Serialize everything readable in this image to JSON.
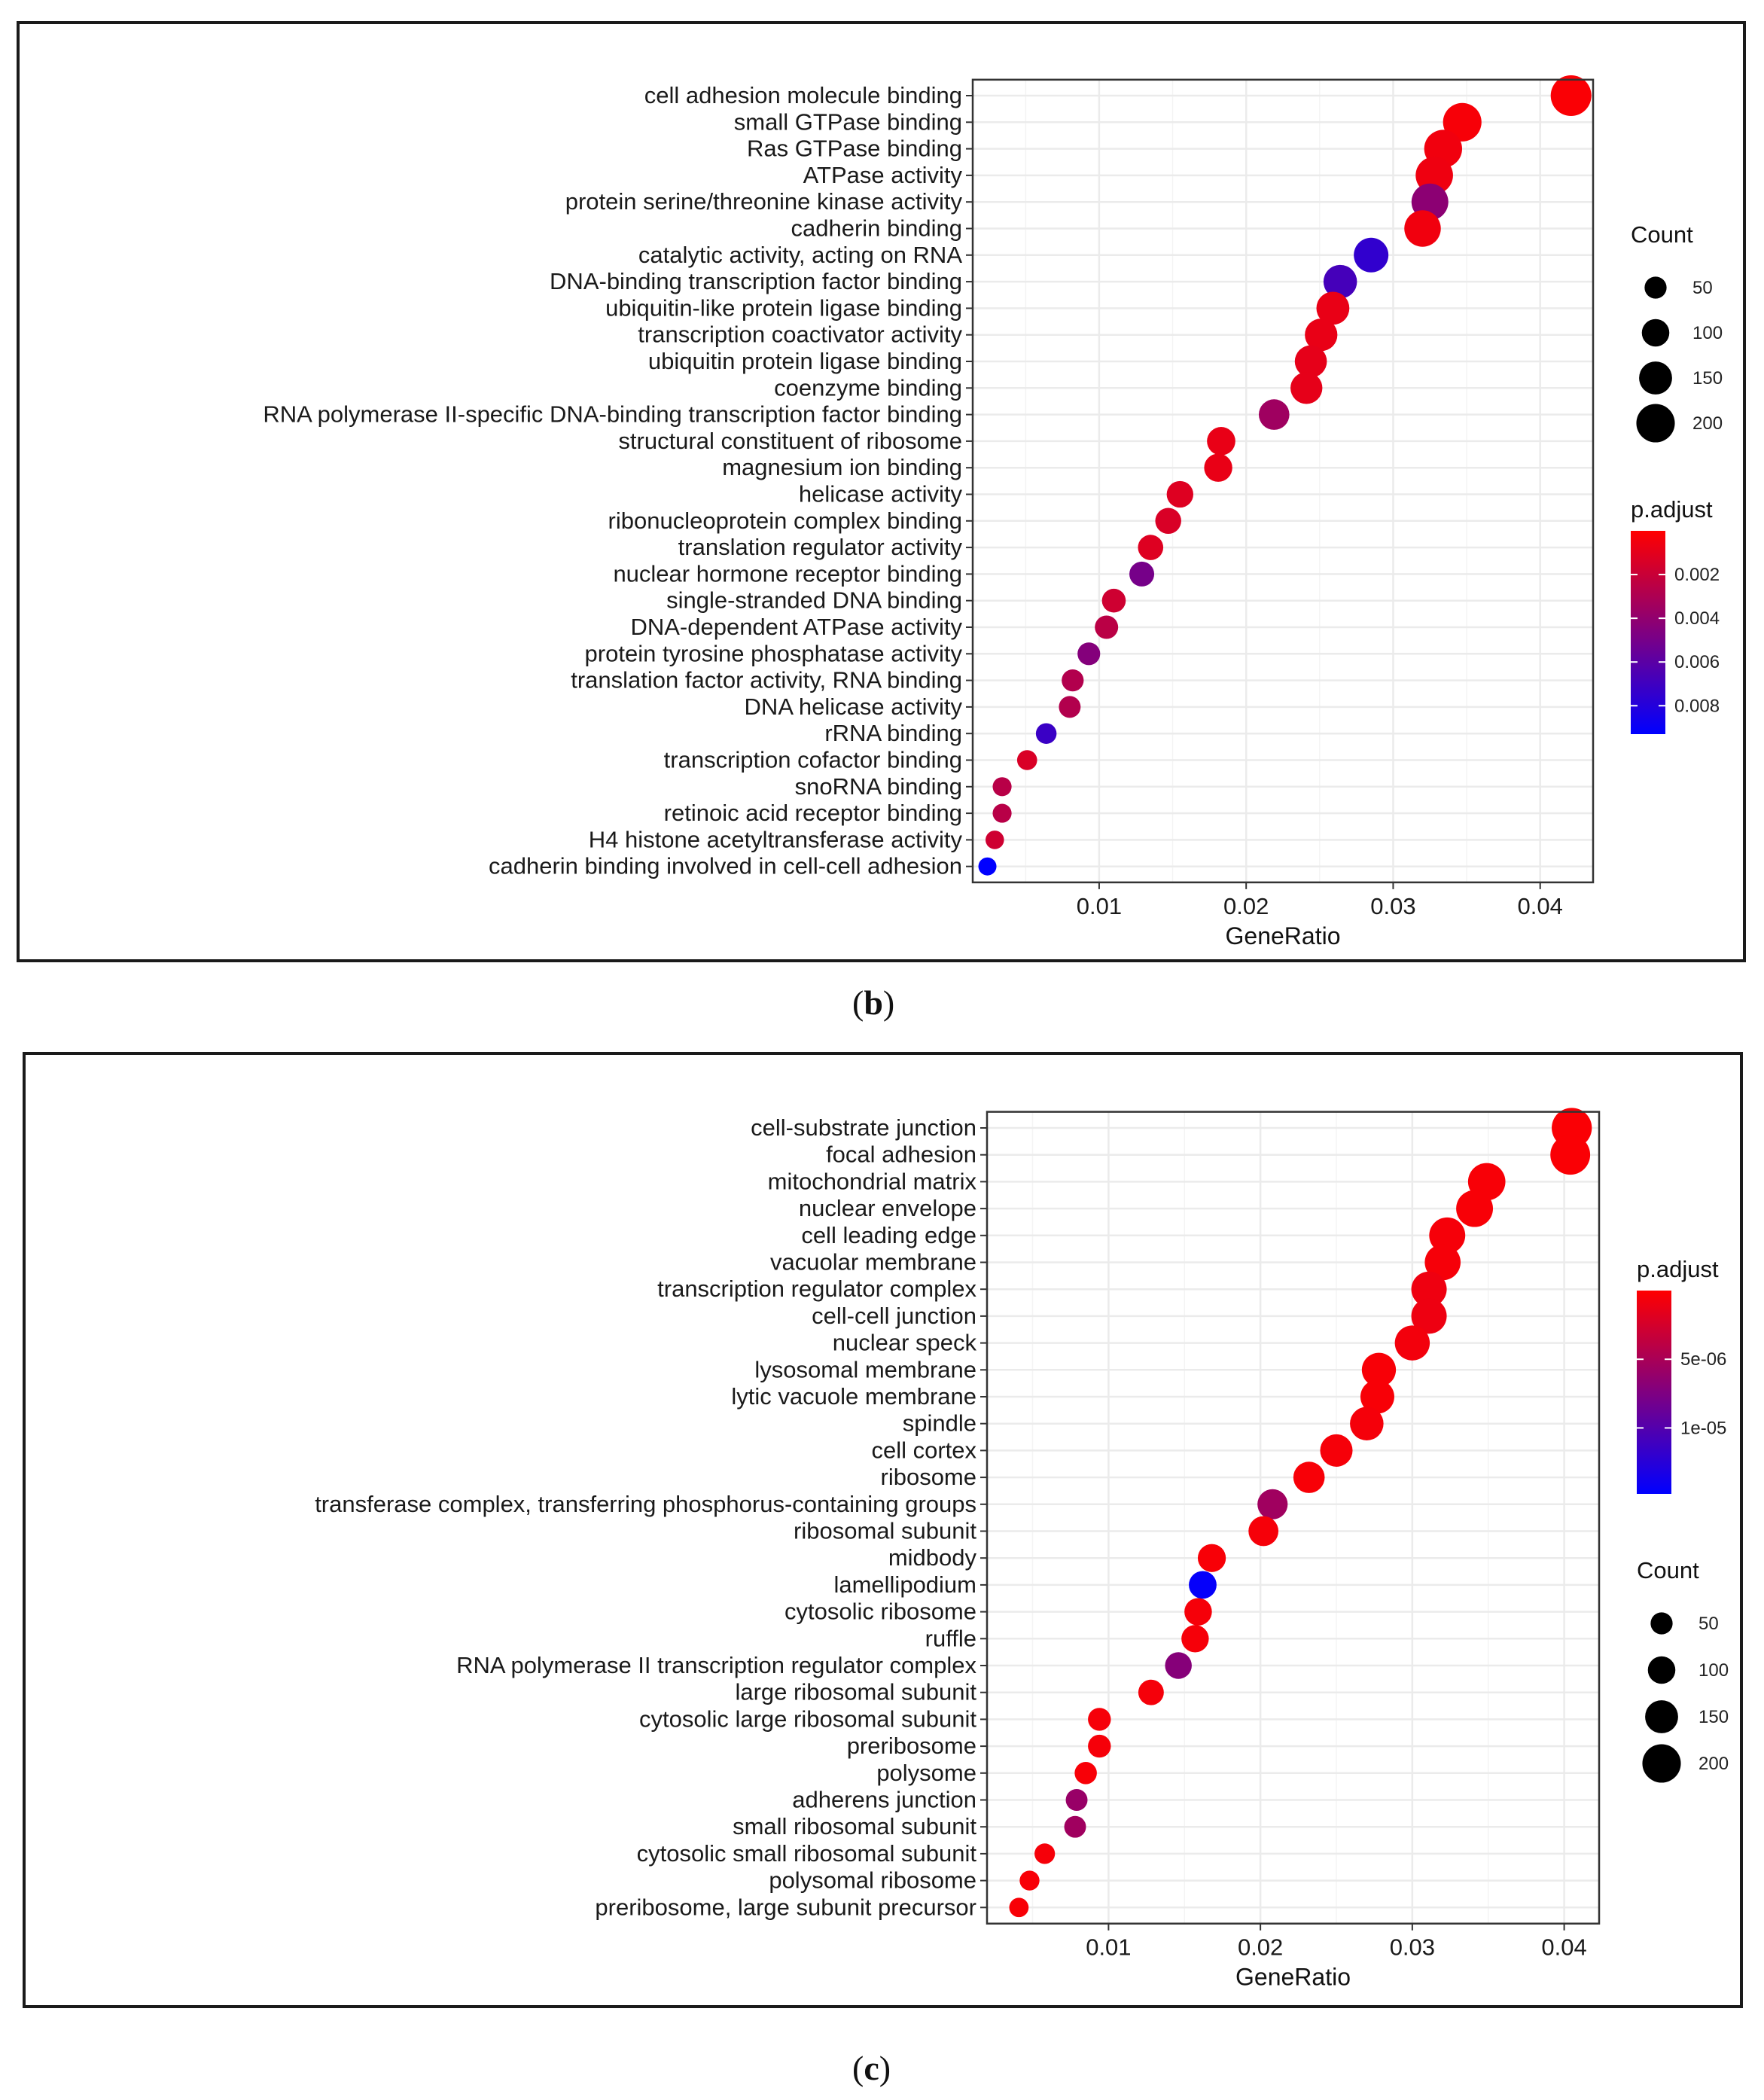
{
  "captions": {
    "b": {
      "open": "(",
      "letter": "b",
      "close": ")"
    },
    "c": {
      "open": "(",
      "letter": "c",
      "close": ")"
    }
  },
  "chart_data": [
    {
      "id": "b",
      "type": "scatter",
      "subtype": "dotplot",
      "xlabel": "GeneRatio",
      "ylabel": "",
      "xlim": [
        0.0014,
        0.0436
      ],
      "xticks": [
        0.01,
        0.02,
        0.03,
        0.04
      ],
      "xtick_labels": [
        "0.01",
        "0.02",
        "0.03",
        "0.04"
      ],
      "grid": true,
      "size_legend": {
        "title": "Count",
        "values": [
          50,
          100,
          150,
          200
        ],
        "labels": [
          "50",
          "100",
          "150",
          "200"
        ]
      },
      "color_legend": {
        "title": "p.adjust",
        "range": [
          0.0,
          0.0093
        ],
        "ticks": [
          0.002,
          0.004,
          0.006,
          0.008
        ],
        "tick_labels": [
          "0.002",
          "0.004",
          "0.006",
          "0.008"
        ],
        "low_color": "#ff0000",
        "high_color": "#0000ff"
      },
      "terms": [
        "cell adhesion molecule binding",
        "small GTPase binding",
        "Ras GTPase binding",
        "ATPase activity",
        "protein serine/threonine kinase activity",
        "cadherin binding",
        "catalytic activity, acting on RNA",
        "DNA-binding transcription factor binding",
        "ubiquitin-like protein ligase binding",
        "transcription coactivator activity",
        "ubiquitin protein ligase binding",
        "coenzyme binding",
        "RNA polymerase II-specific DNA-binding transcription factor binding",
        "structural constituent of ribosome",
        "magnesium ion binding",
        "helicase activity",
        "ribonucleoprotein complex binding",
        "translation regulator activity",
        "nuclear hormone receptor binding",
        "single-stranded DNA binding",
        "DNA-dependent ATPase activity",
        "protein tyrosine phosphatase activity",
        "translation factor activity, RNA binding",
        "DNA helicase activity",
        "rRNA binding",
        "transcription cofactor binding",
        "snoRNA binding",
        "retinoic acid receptor binding",
        "H4 histone acetyltransferase activity",
        "cadherin binding involved in cell-cell adhesion"
      ],
      "gene_ratio": [
        0.0421,
        0.0347,
        0.0334,
        0.0328,
        0.0325,
        0.032,
        0.0285,
        0.0264,
        0.0259,
        0.0251,
        0.0244,
        0.0241,
        0.0219,
        0.0183,
        0.0181,
        0.0155,
        0.0147,
        0.0135,
        0.0129,
        0.011,
        0.0105,
        0.0093,
        0.0082,
        0.008,
        0.0064,
        0.0051,
        0.0034,
        0.0034,
        0.0029,
        0.0024
      ],
      "count": [
        220,
        200,
        195,
        190,
        185,
        182,
        165,
        155,
        150,
        146,
        142,
        140,
        128,
        108,
        106,
        92,
        86,
        80,
        76,
        66,
        62,
        56,
        50,
        48,
        38,
        32,
        22,
        22,
        18,
        14
      ],
      "p_adjust": [
        0.0002,
        0.0003,
        0.0005,
        0.0006,
        0.0042,
        0.0005,
        0.0075,
        0.0068,
        0.0008,
        0.0008,
        0.0009,
        0.0009,
        0.0035,
        0.0008,
        0.0008,
        0.0012,
        0.0014,
        0.0012,
        0.005,
        0.0018,
        0.0025,
        0.0045,
        0.0028,
        0.0028,
        0.0072,
        0.0014,
        0.0026,
        0.0026,
        0.0018,
        0.0093
      ]
    },
    {
      "id": "c",
      "type": "scatter",
      "subtype": "dotplot",
      "xlabel": "GeneRatio",
      "ylabel": "",
      "xlim": [
        0.002,
        0.0423
      ],
      "xticks": [
        0.01,
        0.02,
        0.03,
        0.04
      ],
      "xtick_labels": [
        "0.01",
        "0.02",
        "0.03",
        "0.04"
      ],
      "grid": true,
      "size_legend": {
        "title": "Count",
        "values": [
          50,
          100,
          150,
          200
        ],
        "labels": [
          "50",
          "100",
          "150",
          "200"
        ]
      },
      "color_legend": {
        "title": "p.adjust",
        "range": [
          0.0,
          1.48e-05
        ],
        "ticks": [
          5e-06,
          1e-05
        ],
        "tick_labels": [
          "5e-06",
          "1e-05"
        ],
        "low_color": "#ff0000",
        "high_color": "#0000ff"
      },
      "terms": [
        "cell-substrate junction",
        "focal adhesion",
        "mitochondrial matrix",
        "nuclear envelope",
        "cell leading edge",
        "vacuolar membrane",
        "transcription regulator complex",
        "cell-cell junction",
        "nuclear speck",
        "lysosomal membrane",
        "lytic vacuole membrane",
        "spindle",
        "cell cortex",
        "ribosome",
        "transferase complex, transferring phosphorus-containing groups",
        "ribosomal subunit",
        "midbody",
        "lamellipodium",
        "cytosolic ribosome",
        "ruffle",
        "RNA polymerase II transcription regulator complex",
        "large ribosomal subunit",
        "cytosolic large ribosomal subunit",
        "preribosome",
        "polysome",
        "adherens junction",
        "small ribosomal subunit",
        "cytosolic small ribosomal subunit",
        "polysomal ribosome",
        "preribosome, large subunit precursor"
      ],
      "gene_ratio": [
        0.0405,
        0.0404,
        0.0349,
        0.0341,
        0.0323,
        0.032,
        0.0311,
        0.0311,
        0.03,
        0.0278,
        0.0277,
        0.027,
        0.025,
        0.0232,
        0.0208,
        0.0202,
        0.0168,
        0.0162,
        0.0159,
        0.0157,
        0.0146,
        0.0128,
        0.0094,
        0.0094,
        0.0085,
        0.0079,
        0.0078,
        0.0058,
        0.0048,
        0.0041
      ],
      "count": [
        215,
        212,
        190,
        185,
        178,
        176,
        172,
        172,
        168,
        160,
        158,
        155,
        145,
        135,
        125,
        122,
        105,
        102,
        100,
        99,
        93,
        82,
        58,
        58,
        52,
        48,
        48,
        36,
        30,
        26
      ],
      "p_adjust": [
        3e-07,
        3e-07,
        4e-07,
        4e-07,
        5e-07,
        5e-07,
        9e-07,
        1e-06,
        7e-07,
        4e-07,
        4e-07,
        6e-07,
        5e-07,
        4e-07,
        5.5e-06,
        5e-07,
        4e-07,
        1.45e-05,
        5e-07,
        5e-07,
        7e-06,
        6e-07,
        5e-07,
        5e-07,
        4e-07,
        6e-06,
        5.5e-06,
        5e-07,
        4e-07,
        4e-07
      ]
    }
  ]
}
